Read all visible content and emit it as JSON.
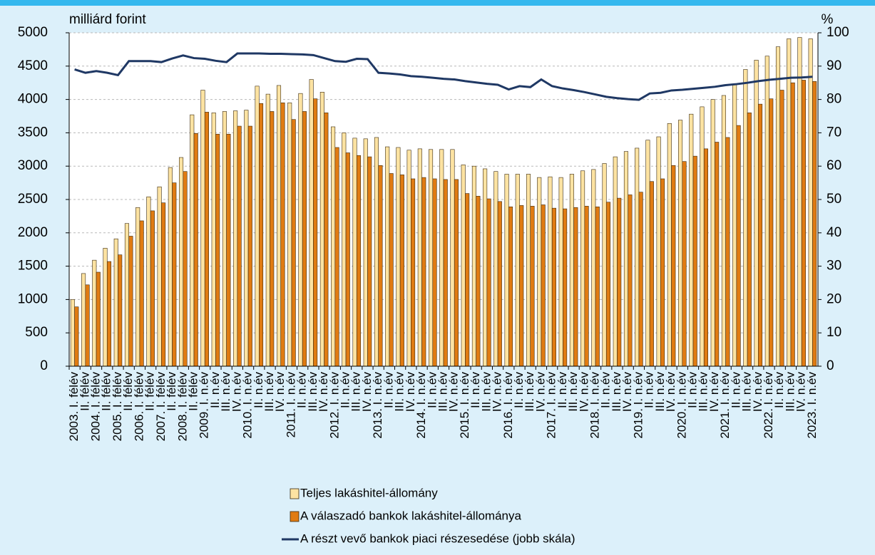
{
  "chart_data": {
    "type": "bar",
    "ylabel": "milliárd forint",
    "y2label": "%",
    "categories": [
      "2003. I. félév",
      "II. félév",
      "2004. I. félév",
      "II. félév",
      "2005. I. félév",
      "II. félév",
      "2006. I. félév",
      "II. félév",
      "2007. I. félév",
      "II. félév",
      "2008. I. félév",
      "II. félév",
      "2009. I. n.év",
      "II. n.év",
      "III. n.év",
      "IV. n.év",
      "2010. I. n.év",
      "II. n.év",
      "III. n.év",
      "IV. n.év",
      "2011. I. n.év",
      "II. n.év",
      "III. n.év",
      "IV. n.év",
      "2012. I. n.év",
      "II. n.év",
      "III. n.év",
      "IV. n.év",
      "2013. I. n.év",
      "II. n.év",
      "III. n.év",
      "IV. n.év",
      "2014. I. n.év",
      "II. n.év",
      "III. n.év",
      "IV. n.év",
      "2015. I. n.év",
      "II. n.év",
      "III. n.év",
      "IV. n.év",
      "2016. I. n.év",
      "II. n.év",
      "III. n.év",
      "IV. n.év",
      "2017. I. n.év",
      "II. n.év",
      "III. n.év",
      "IV. n.év",
      "2018. I. n.év",
      "II. n.év",
      "III. n.év",
      "IV. n.év",
      "2019. I. n.év",
      "II. n.év",
      "III. n.év",
      "IV. n.év",
      "2020. I. n.év",
      "II. n.év",
      "III. n.év",
      "IV. n.év",
      "2021. I. n.év",
      "II. n.év",
      "III. n.év",
      "IV. n.év",
      "2022. I. n.év",
      "II. n.év",
      "III. n.év",
      "IV. n.év",
      "2023. I. n.év"
    ],
    "series": [
      {
        "name": "Teljes lakáshitel-állomány",
        "type": "bar",
        "color": "#fde3a2",
        "values": [
          1000,
          1390,
          1590,
          1770,
          1910,
          2140,
          2380,
          2540,
          2690,
          2980,
          3130,
          3770,
          4140,
          3800,
          3820,
          3830,
          3840,
          4200,
          4080,
          4210,
          3950,
          4090,
          4300,
          4110,
          3590,
          3500,
          3420,
          3410,
          3430,
          3290,
          3280,
          3240,
          3260,
          3250,
          3250,
          3250,
          3020,
          3000,
          2960,
          2920,
          2880,
          2880,
          2880,
          2830,
          2840,
          2830,
          2880,
          2930,
          2950,
          3040,
          3140,
          3220,
          3270,
          3390,
          3440,
          3640,
          3690,
          3780,
          3890,
          4000,
          4060,
          4230,
          4450,
          4590,
          4650,
          4790,
          4910,
          4930,
          4910
        ]
      },
      {
        "name": "A válaszadó bankok lakáshitel-állománya",
        "type": "bar",
        "color": "#e07b12",
        "values": [
          890,
          1220,
          1410,
          1570,
          1670,
          1950,
          2180,
          2330,
          2450,
          2750,
          2920,
          3490,
          3810,
          3480,
          3480,
          3600,
          3600,
          3940,
          3820,
          3950,
          3700,
          3820,
          4010,
          3800,
          3280,
          3200,
          3160,
          3140,
          3010,
          2890,
          2870,
          2810,
          2830,
          2810,
          2800,
          2800,
          2590,
          2550,
          2510,
          2470,
          2390,
          2410,
          2400,
          2420,
          2370,
          2360,
          2380,
          2400,
          2390,
          2460,
          2520,
          2570,
          2610,
          2770,
          2810,
          3010,
          3070,
          3150,
          3260,
          3360,
          3430,
          3610,
          3800,
          3930,
          4010,
          4140,
          4250,
          4290,
          4270
        ]
      },
      {
        "name": "A részt vevő bankok piaci részesedése (jobb skála)",
        "type": "line",
        "axis": "y2",
        "color": "#1f3864",
        "values": [
          89,
          88,
          88.5,
          88,
          87.3,
          91.5,
          91.5,
          91.5,
          91.2,
          92.3,
          93.2,
          92.4,
          92.2,
          91.6,
          91.2,
          93.8,
          93.8,
          93.8,
          93.7,
          93.7,
          93.6,
          93.5,
          93.3,
          92.4,
          91.5,
          91.3,
          92.2,
          92.1,
          88,
          87.8,
          87.5,
          87,
          86.8,
          86.5,
          86.2,
          86,
          85.5,
          85.1,
          84.7,
          84.4,
          83,
          84,
          83.7,
          86,
          84,
          83.3,
          82.8,
          82.2,
          81.5,
          80.8,
          80.4,
          80.1,
          79.9,
          81.8,
          82,
          82.7,
          82.9,
          83.2,
          83.5,
          83.8,
          84.3,
          84.6,
          85,
          85.5,
          85.9,
          86.2,
          86.5,
          86.6,
          86.8
        ]
      }
    ],
    "ylim": [
      0,
      5000
    ],
    "yticks": [
      0,
      500,
      1000,
      1500,
      2000,
      2500,
      3000,
      3500,
      4000,
      4500,
      5000
    ],
    "y2lim": [
      0,
      100
    ],
    "y2ticks": [
      0,
      10,
      20,
      30,
      40,
      50,
      60,
      70,
      80,
      90,
      100
    ],
    "grid": true,
    "legend": "bottom"
  }
}
